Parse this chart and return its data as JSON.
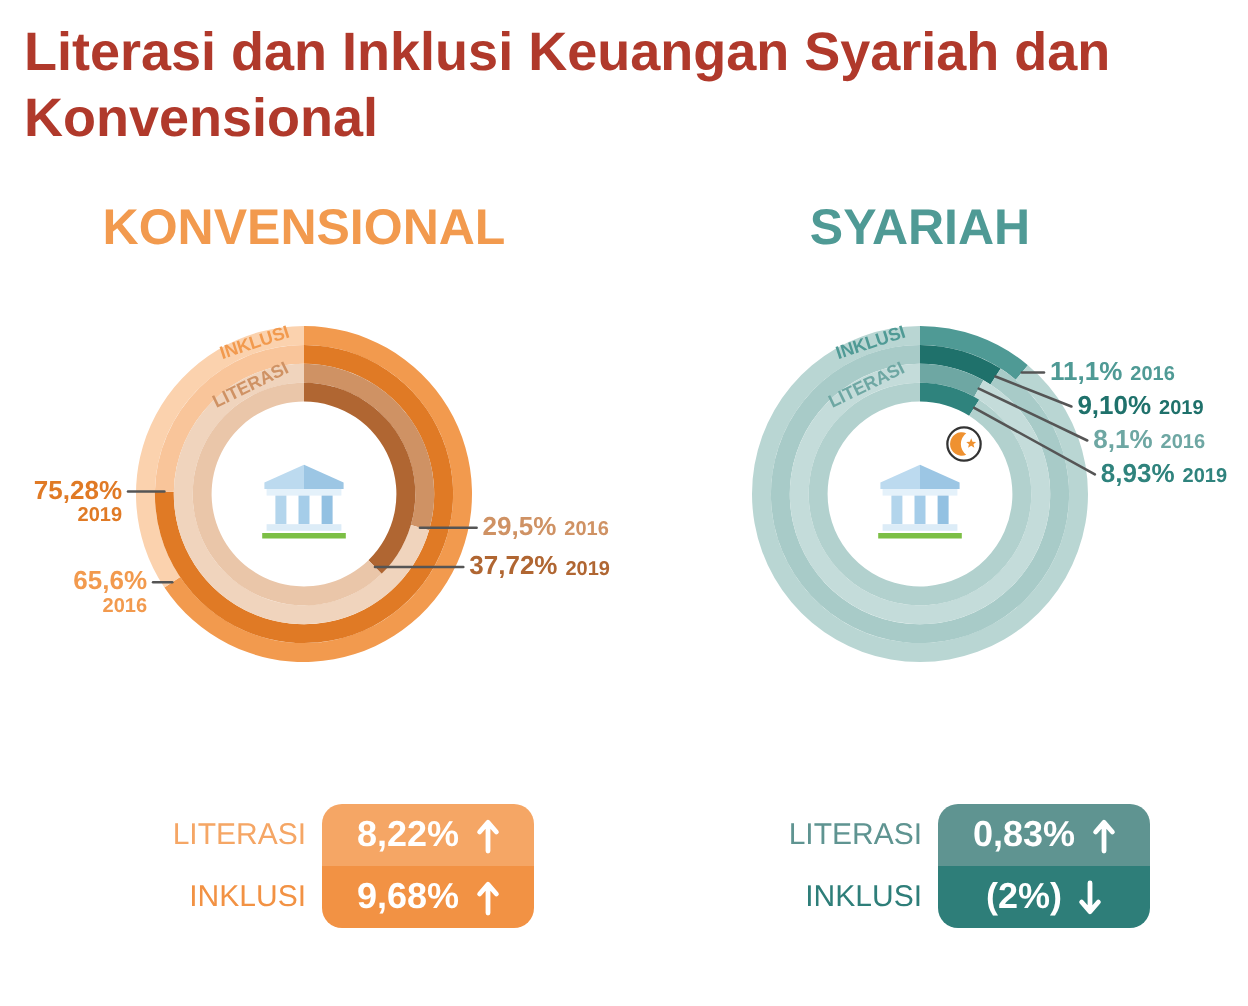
{
  "chart_data": [
    {
      "type": "donut",
      "title": "Literasi dan Inklusi Keuangan Syariah dan Konvensional",
      "subtitle": "KONVENSIONAL",
      "annotations": [
        "INKLUSI"
      ],
      "categories": [
        "2016",
        null
      ],
      "values": [
        65.6,
        34.4
      ],
      "colors": [
        "#f29a4e",
        "#fbd2ae"
      ],
      "value_labels": [
        "65,6%",
        null
      ]
    },
    {
      "type": "donut",
      "categories": [
        "2019",
        null
      ],
      "values": [
        75.28,
        24.72
      ],
      "colors": [
        "#e07a25",
        "#f9c59a"
      ],
      "value_labels": [
        "75,28%",
        null
      ]
    },
    {
      "type": "donut",
      "annotations": [
        "LITERASI"
      ],
      "categories": [
        "2016",
        null
      ],
      "values": [
        29.5,
        70.5
      ],
      "colors": [
        "#cf9264",
        "#f0d4bd"
      ],
      "value_labels": [
        "29,5%",
        null
      ]
    },
    {
      "type": "donut",
      "categories": [
        "2019",
        null
      ],
      "values": [
        37.72,
        62.28
      ],
      "colors": [
        "#b06632",
        "#eac6a9"
      ],
      "value_labels": [
        "37,72%",
        null
      ]
    },
    {
      "type": "donut",
      "subtitle": "SYARIAH",
      "annotations": [
        "INKLUSI"
      ],
      "categories": [
        "2016",
        null
      ],
      "values": [
        11.1,
        88.9
      ],
      "colors": [
        "#4f9a95",
        "#b9d6d3"
      ],
      "value_labels": [
        "11,1%",
        null
      ]
    },
    {
      "type": "donut",
      "categories": [
        "2019",
        null
      ],
      "values": [
        9.1,
        90.9
      ],
      "colors": [
        "#1f716b",
        "#a8cbc8"
      ],
      "value_labels": [
        "9,10%",
        null
      ]
    },
    {
      "type": "donut",
      "annotations": [
        "LITERASI"
      ],
      "categories": [
        "2016",
        null
      ],
      "values": [
        8.1,
        91.9
      ],
      "colors": [
        "#6ea7a3",
        "#c4dcda"
      ],
      "value_labels": [
        "8,1%",
        null
      ]
    },
    {
      "type": "donut",
      "categories": [
        "2019",
        null
      ],
      "values": [
        8.93,
        91.07
      ],
      "colors": [
        "#2f837d",
        "#b2d1ce"
      ],
      "value_labels": [
        "8,93%",
        null
      ]
    },
    {
      "type": "other",
      "categories": [
        "LITERASI",
        "INKLUSI"
      ],
      "values": [
        8.22,
        9.68
      ],
      "value_labels": [
        "8,22%",
        "9,68%"
      ],
      "colors": [
        "#f5a665",
        "#f29244"
      ]
    },
    {
      "type": "other",
      "categories": [
        "LITERASI",
        "INKLUSI"
      ],
      "values": [
        0.83,
        -2
      ],
      "value_labels": [
        "0,83%",
        "(2%)"
      ],
      "colors": [
        "#5f9491",
        "#2e7e79"
      ]
    }
  ]
}
